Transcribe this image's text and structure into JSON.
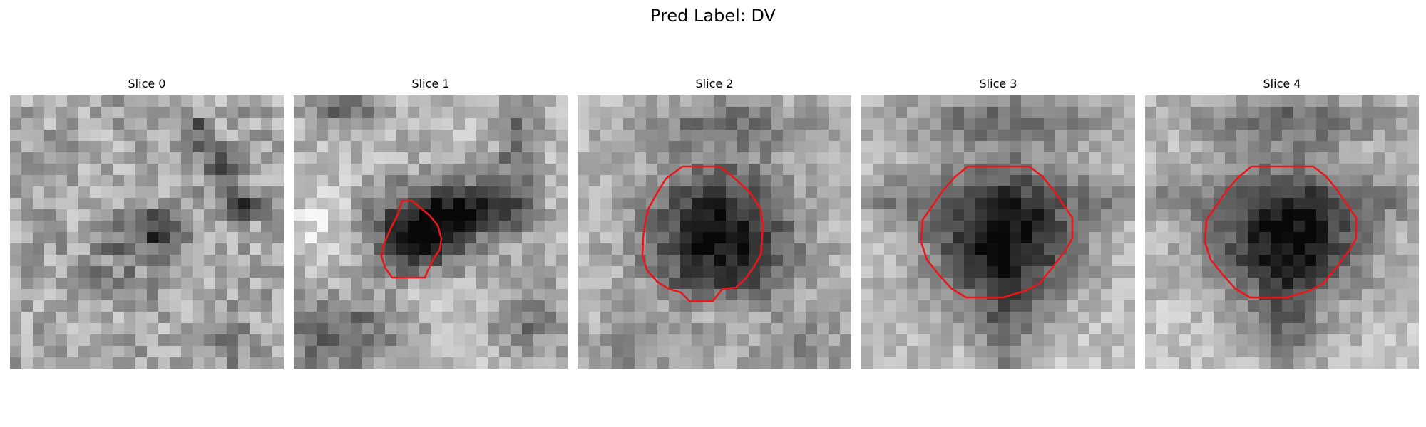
{
  "figure": {
    "title": "Pred Label: DV",
    "contour_color": "#e8171c",
    "colormap": "gray",
    "grid_size": 24
  },
  "slices": [
    {
      "title": "Slice 0",
      "has_contour": false,
      "dark_blob": "faint, diffuse; diagonal dark streak upper-right"
    },
    {
      "title": "Slice 1",
      "has_contour": true,
      "dark_blob": "small dark region left of center"
    },
    {
      "title": "Slice 2",
      "has_contour": true,
      "dark_blob": "large round dark region centered"
    },
    {
      "title": "Slice 3",
      "has_contour": true,
      "dark_blob": "large round dark region centered"
    },
    {
      "title": "Slice 4",
      "has_contour": true,
      "dark_blob": "large round dark region centered"
    }
  ]
}
